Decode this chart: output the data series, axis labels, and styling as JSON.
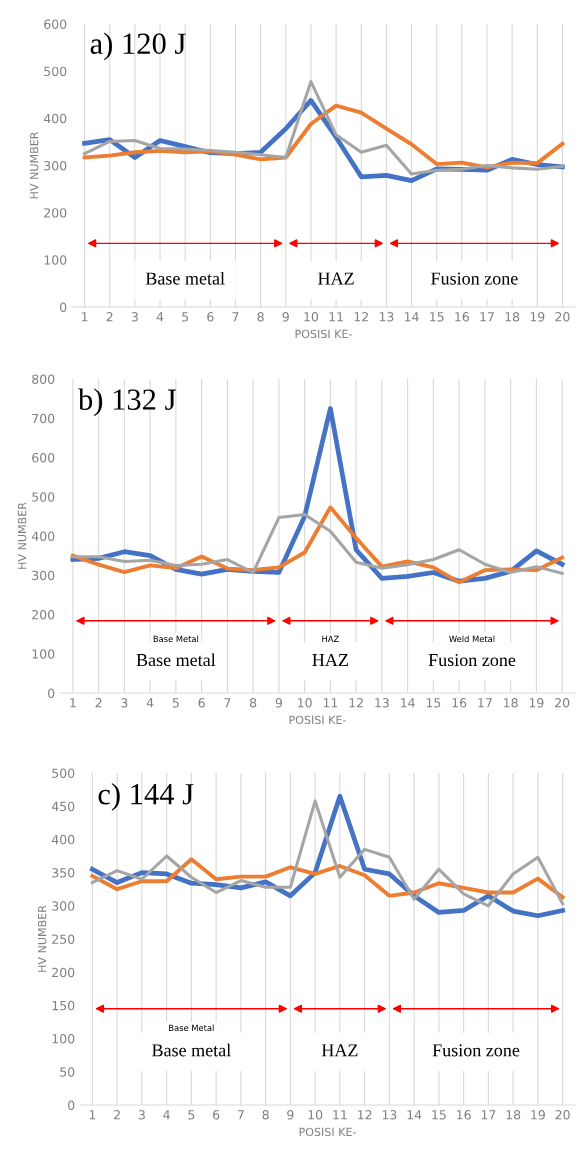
{
  "chart_data": [
    {
      "type": "line",
      "title": "a) 120 J",
      "xlabel": "POSISI KE-",
      "ylabel": "HV NUMBER",
      "categories": [
        "1",
        "2",
        "3",
        "4",
        "5",
        "6",
        "7",
        "8",
        "9",
        "10",
        "11",
        "12",
        "13",
        "14",
        "15",
        "16",
        "17",
        "18",
        "19",
        "20"
      ],
      "series": [
        {
          "color": "#4472c4",
          "values": [
            347,
            355,
            317,
            353,
            340,
            327,
            325,
            328,
            378,
            438,
            360,
            276,
            279,
            268,
            293,
            292,
            290,
            313,
            302,
            297
          ]
        },
        {
          "color": "#ed7d31",
          "values": [
            317,
            321,
            328,
            331,
            328,
            330,
            323,
            313,
            317,
            388,
            427,
            412,
            378,
            345,
            303,
            306,
            296,
            306,
            305,
            346
          ]
        },
        {
          "color": "#a5a5a5",
          "values": [
            325,
            351,
            353,
            336,
            335,
            332,
            328,
            323,
            317,
            478,
            365,
            328,
            343,
            282,
            290,
            292,
            300,
            295,
            292,
            298
          ]
        }
      ],
      "ylim": [
        0,
        600
      ],
      "yticks": [
        0,
        100,
        200,
        300,
        400,
        500,
        600
      ],
      "grid": "x",
      "marker": "none",
      "line_style": "solid",
      "annotations": [
        "Base metal",
        "HAZ",
        "Fusion zone"
      ]
    },
    {
      "type": "line",
      "title": "b) 132 J",
      "xlabel": "POSISI KE-",
      "ylabel": "HV NUMBER",
      "categories": [
        "1",
        "2",
        "3",
        "4",
        "5",
        "6",
        "7",
        "8",
        "9",
        "10",
        "11",
        "12",
        "13",
        "14",
        "15",
        "16",
        "17",
        "18",
        "19",
        "20"
      ],
      "series": [
        {
          "color": "#4472c4",
          "values": [
            340,
            343,
            360,
            350,
            315,
            303,
            315,
            310,
            307,
            450,
            725,
            365,
            292,
            297,
            307,
            285,
            292,
            310,
            362,
            328
          ]
        },
        {
          "color": "#ed7d31",
          "values": [
            350,
            327,
            308,
            325,
            318,
            348,
            317,
            313,
            320,
            358,
            473,
            395,
            322,
            335,
            320,
            282,
            313,
            315,
            313,
            345
          ]
        },
        {
          "color": "#a5a5a5",
          "values": [
            347,
            347,
            335,
            338,
            325,
            328,
            340,
            307,
            447,
            455,
            412,
            333,
            318,
            327,
            340,
            365,
            328,
            307,
            322,
            305
          ]
        }
      ],
      "ylim": [
        0,
        800
      ],
      "yticks": [
        0,
        100,
        200,
        300,
        400,
        500,
        600,
        700,
        800
      ],
      "grid": "x",
      "marker": "none",
      "line_style": "solid",
      "annotations": [
        "Base metal",
        "HAZ",
        "Fusion zone",
        "Base Metal",
        "HAZ",
        "Weld Metal"
      ]
    },
    {
      "type": "line",
      "title": "c) 144 J",
      "xlabel": "POSISI KE-",
      "ylabel": "HV NUMBER",
      "categories": [
        "1",
        "2",
        "3",
        "4",
        "5",
        "6",
        "7",
        "8",
        "9",
        "10",
        "11",
        "12",
        "13",
        "14",
        "15",
        "16",
        "17",
        "18",
        "19",
        "20"
      ],
      "series": [
        {
          "color": "#4472c4",
          "values": [
            355,
            335,
            350,
            348,
            334,
            332,
            327,
            336,
            315,
            350,
            465,
            355,
            348,
            315,
            290,
            293,
            315,
            292,
            285,
            293
          ]
        },
        {
          "color": "#ed7d31",
          "values": [
            345,
            325,
            337,
            337,
            370,
            340,
            344,
            344,
            358,
            348,
            360,
            346,
            315,
            320,
            334,
            327,
            320,
            320,
            341,
            313
          ]
        },
        {
          "color": "#a5a5a5",
          "values": [
            335,
            353,
            340,
            375,
            343,
            320,
            338,
            328,
            328,
            458,
            343,
            385,
            373,
            310,
            355,
            318,
            300,
            348,
            373,
            303
          ]
        }
      ],
      "ylim": [
        0,
        500
      ],
      "yticks": [
        0,
        50,
        100,
        150,
        200,
        250,
        300,
        350,
        400,
        450,
        500
      ],
      "grid": "x",
      "marker": "none",
      "line_style": "solid",
      "annotations": [
        "Base metal",
        "HAZ",
        "Fusion zone",
        "Base Metal"
      ]
    }
  ]
}
